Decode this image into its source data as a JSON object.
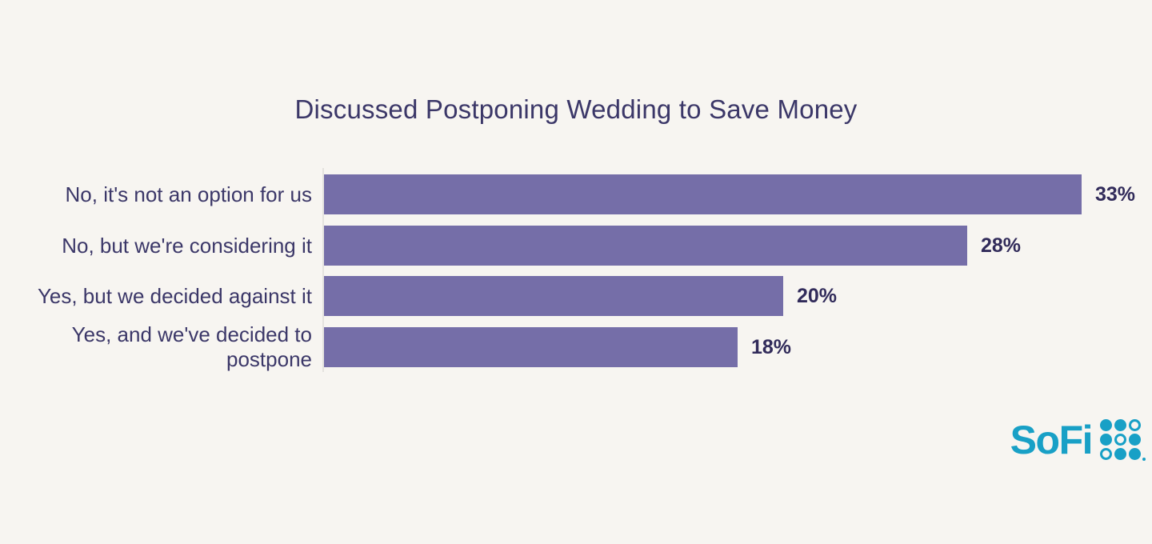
{
  "chart_data": {
    "type": "bar",
    "orientation": "horizontal",
    "title": "Discussed Postponing Wedding to Save Money",
    "categories": [
      "No, it's not an option for us",
      "No, but we're considering it",
      "Yes, but we decided against it",
      "Yes, and we've decided to postpone"
    ],
    "values": [
      33,
      28,
      20,
      18
    ],
    "value_labels": [
      "33%",
      "28%",
      "20%",
      "18%"
    ],
    "xlabel": "",
    "ylabel": "",
    "xlim": [
      0,
      33
    ],
    "grid": false,
    "legend": false
  },
  "colors": {
    "background": "#f7f5f1",
    "bar": "#756ea8",
    "title_text": "#3b3768",
    "category_text": "#3b3768",
    "value_text": "#312b5a",
    "axis_line": "#e5e3df",
    "logo": "#18a0c6"
  },
  "logo": {
    "text": "SoFi",
    "dots_icon": "sofi-dot-grid",
    "dots": [
      [
        1,
        1,
        0
      ],
      [
        1,
        0,
        1
      ],
      [
        0,
        1,
        1
      ]
    ]
  }
}
